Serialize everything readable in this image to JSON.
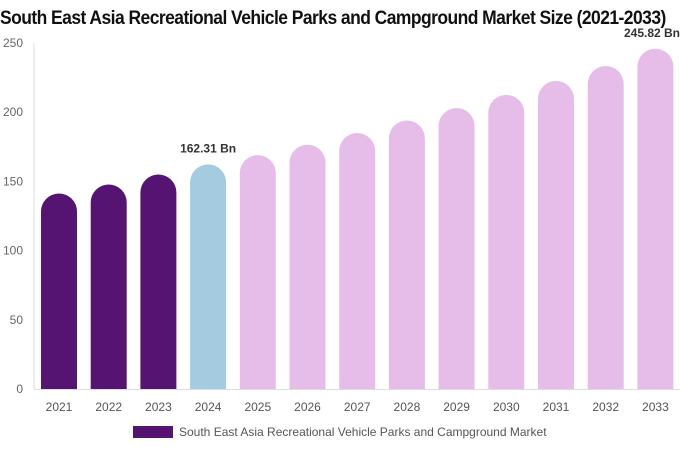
{
  "chart_data": {
    "type": "bar",
    "title": "South East Asia Recreational Vehicle Parks and Campground Market Size (2021-2033)",
    "categories": [
      "2021",
      "2022",
      "2023",
      "2024",
      "2025",
      "2026",
      "2027",
      "2028",
      "2029",
      "2030",
      "2031",
      "2032",
      "2033"
    ],
    "series": [
      {
        "name": "South East Asia Recreational Vehicle Parks and Campground Market",
        "values": [
          141.3,
          147.8,
          155.0,
          162.31,
          169.0,
          176.5,
          185.0,
          194.0,
          203.0,
          212.5,
          222.6,
          233.4,
          245.82
        ]
      }
    ],
    "bar_colors": [
      "#551372",
      "#551372",
      "#551372",
      "#a4cbe0",
      "#e6bde9",
      "#e6bde9",
      "#e6bde9",
      "#e6bde9",
      "#e6bde9",
      "#e6bde9",
      "#e6bde9",
      "#e6bde9",
      "#e6bde9"
    ],
    "data_labels": {
      "3": "162.31 Bn",
      "12": "245.82 Bn"
    },
    "yticks": [
      "0",
      "50",
      "100",
      "150",
      "200",
      "250"
    ],
    "ylim": [
      0,
      250
    ],
    "xlabel": "",
    "ylabel": "",
    "grid": false,
    "legend_position": "bottom"
  }
}
